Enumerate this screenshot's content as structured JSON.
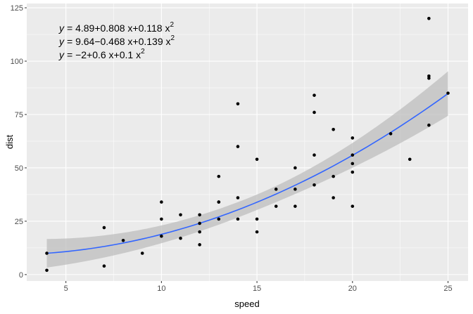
{
  "chart_data": {
    "type": "scatter",
    "xlabel": "speed",
    "ylabel": "dist",
    "xlim": [
      2.95,
      26.05
    ],
    "ylim": [
      -3,
      127
    ],
    "xticks": [
      5,
      10,
      15,
      20,
      25
    ],
    "yticks": [
      0,
      25,
      50,
      75,
      100,
      125
    ],
    "grid": true,
    "colors": {
      "panel": "#ebebeb",
      "points": "#000000",
      "line": "#3366ff",
      "ribbon": "#bebebe"
    },
    "equations": [
      {
        "lhs": "y",
        "rhs": "= 4.89+0.808 x+0.118 x",
        "sup": "2"
      },
      {
        "lhs": "y",
        "rhs": "= 9.64−0.468 x+0.139 x",
        "sup": "2"
      },
      {
        "lhs": "y",
        "rhs": "= −2+0.6 x+0.1 x",
        "sup": "2"
      }
    ],
    "fit": {
      "intercept": 9.64,
      "b1": -0.468,
      "b2": 0.139
    },
    "points": [
      [
        4,
        2
      ],
      [
        4,
        10
      ],
      [
        7,
        4
      ],
      [
        7,
        22
      ],
      [
        8,
        16
      ],
      [
        9,
        10
      ],
      [
        10,
        18
      ],
      [
        10,
        26
      ],
      [
        10,
        34
      ],
      [
        11,
        17
      ],
      [
        11,
        28
      ],
      [
        12,
        14
      ],
      [
        12,
        20
      ],
      [
        12,
        24
      ],
      [
        12,
        28
      ],
      [
        13,
        26
      ],
      [
        13,
        34
      ],
      [
        13,
        34
      ],
      [
        13,
        46
      ],
      [
        14,
        26
      ],
      [
        14,
        36
      ],
      [
        14,
        60
      ],
      [
        14,
        80
      ],
      [
        15,
        20
      ],
      [
        15,
        26
      ],
      [
        15,
        54
      ],
      [
        16,
        32
      ],
      [
        16,
        40
      ],
      [
        17,
        32
      ],
      [
        17,
        40
      ],
      [
        17,
        50
      ],
      [
        18,
        42
      ],
      [
        18,
        56
      ],
      [
        18,
        76
      ],
      [
        18,
        84
      ],
      [
        19,
        36
      ],
      [
        19,
        46
      ],
      [
        19,
        68
      ],
      [
        20,
        32
      ],
      [
        20,
        48
      ],
      [
        20,
        52
      ],
      [
        20,
        56
      ],
      [
        20,
        64
      ],
      [
        22,
        66
      ],
      [
        23,
        54
      ],
      [
        24,
        70
      ],
      [
        24,
        92
      ],
      [
        24,
        93
      ],
      [
        24,
        120
      ],
      [
        25,
        85
      ]
    ]
  }
}
